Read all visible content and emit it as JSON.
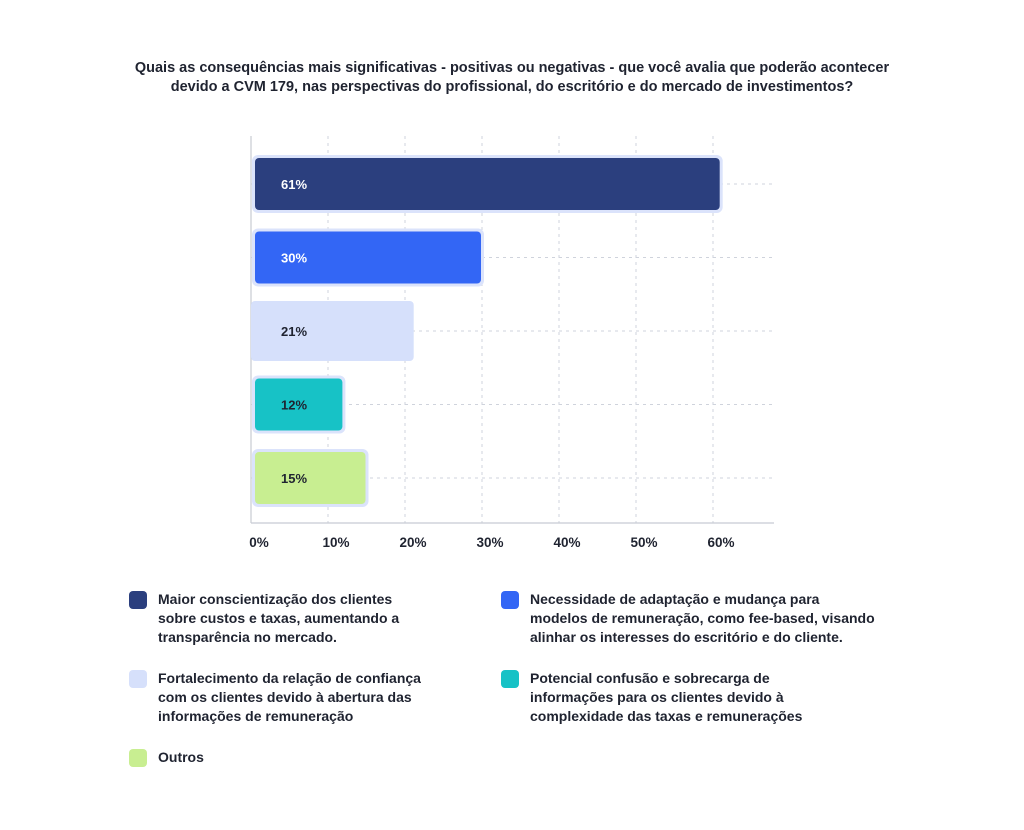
{
  "title_lines": [
    "Quais as consequências mais significativas - positivas ou negativas - que você avalia que poderão acontecer",
    "devido a CVM 179, nas perspectivas do profissional, do escritório e do mercado de investimentos?"
  ],
  "chart_data": {
    "type": "bar",
    "orientation": "horizontal",
    "title": "Quais as consequências mais significativas - positivas ou negativas - que você avalia que poderão acontecer devido a CVM 179, nas perspectivas do profissional, do escritório e do mercado de investimentos?",
    "categories": [
      "Maior conscientização dos clientes sobre custos e taxas, aumentando a transparência no mercado.",
      "Necessidade de adaptação e mudança para modelos de remuneração, como fee-based, visando alinhar os interesses do escritório e do cliente.",
      "Fortalecimento da relação de confiança com os clientes devido à abertura das informações de remuneração",
      "Potencial confusão e sobrecarga de informações para os clientes devido à complexidade das taxas e remunerações",
      "Outros"
    ],
    "values": [
      61,
      30,
      21,
      12,
      15
    ],
    "value_labels": [
      "61%",
      "30%",
      "21%",
      "12%",
      "15%"
    ],
    "xlim": [
      0,
      67
    ],
    "x_ticks": [
      0,
      10,
      20,
      30,
      40,
      50,
      60
    ],
    "x_tick_labels": [
      "0%",
      "10%",
      "20%",
      "30%",
      "40%",
      "50%",
      "60%"
    ],
    "grid": true,
    "legend_position": "bottom",
    "colors": [
      "#2b3f7e",
      "#3366f5",
      "#d6e0fb",
      "#17c2c6",
      "#c8ee91"
    ],
    "label_colors": [
      "#ffffff",
      "#ffffff",
      "#1f2330",
      "#1f2330",
      "#1f2330"
    ],
    "outline_color": "#dbe3fb"
  },
  "legend": [
    {
      "lines": [
        "Maior conscientização dos clientes",
        "sobre custos e taxas, aumentando a",
        "transparência no mercado."
      ]
    },
    {
      "lines": [
        "Necessidade de adaptação e mudança para",
        "modelos de remuneração, como fee-based, visando",
        "alinhar os interesses do escritório e do cliente."
      ]
    },
    {
      "lines": [
        "Fortalecimento da relação de confiança",
        "com os clientes devido à abertura das",
        "informações de remuneração"
      ]
    },
    {
      "lines": [
        "Potencial confusão e sobrecarga de",
        "informações para os clientes devido à",
        "complexidade das taxas e remunerações"
      ]
    },
    {
      "lines": [
        "Outros"
      ]
    }
  ]
}
